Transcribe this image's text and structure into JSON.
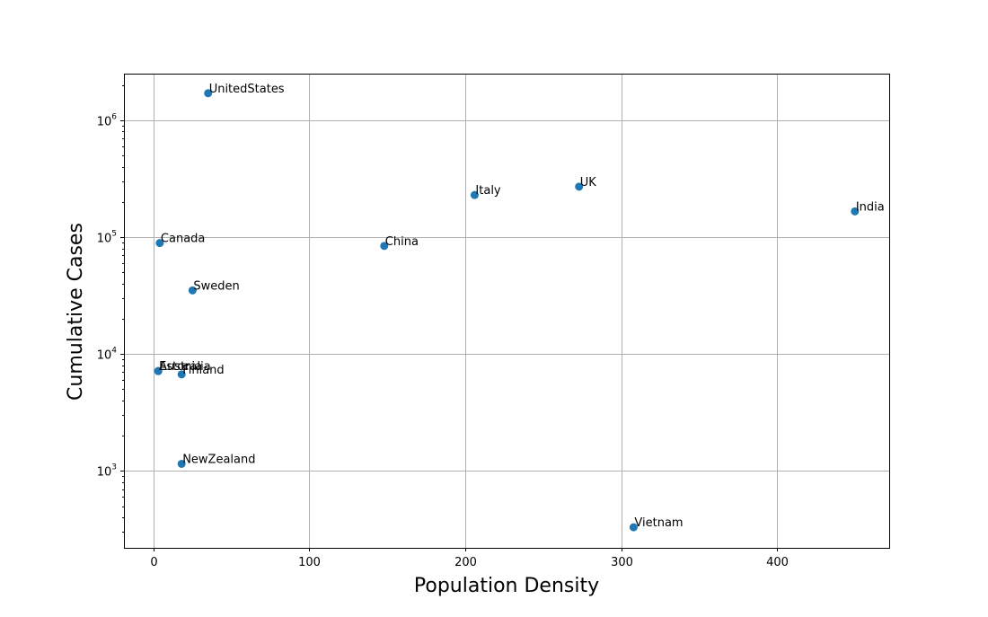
{
  "chart_data": {
    "type": "scatter",
    "title": "",
    "xlabel": "Population Density",
    "ylabel": "Cumulative Cases",
    "x_scale": "linear",
    "y_scale": "log",
    "xlim": [
      -19,
      472
    ],
    "ylim": [
      220,
      2500000
    ],
    "grid": true,
    "marker_color": "#1f77b4",
    "x_ticks": [
      0,
      100,
      200,
      300,
      400
    ],
    "x_tick_labels": [
      "0",
      "100",
      "200",
      "300",
      "400"
    ],
    "y_ticks": [
      1000,
      10000,
      100000,
      1000000
    ],
    "y_tick_labels": [
      {
        "base": "10",
        "exp": "3"
      },
      {
        "base": "10",
        "exp": "4"
      },
      {
        "base": "10",
        "exp": "5"
      },
      {
        "base": "10",
        "exp": "6"
      }
    ],
    "points": [
      {
        "label": "UnitedStates",
        "x": 35,
        "y": 1700000
      },
      {
        "label": "Italy",
        "x": 206,
        "y": 229000
      },
      {
        "label": "UK",
        "x": 273,
        "y": 270000
      },
      {
        "label": "India",
        "x": 450,
        "y": 166000
      },
      {
        "label": "Canada",
        "x": 4,
        "y": 89000
      },
      {
        "label": "China",
        "x": 148,
        "y": 84000
      },
      {
        "label": "Sweden",
        "x": 25,
        "y": 35000
      },
      {
        "label": "Australia",
        "x": 3,
        "y": 7150
      },
      {
        "label": "Estonia",
        "x": 3,
        "y": 7150
      },
      {
        "label": "Finland",
        "x": 18,
        "y": 6700
      },
      {
        "label": "NewZealand",
        "x": 18,
        "y": 1150
      },
      {
        "label": "Vietnam",
        "x": 308,
        "y": 330
      }
    ]
  }
}
